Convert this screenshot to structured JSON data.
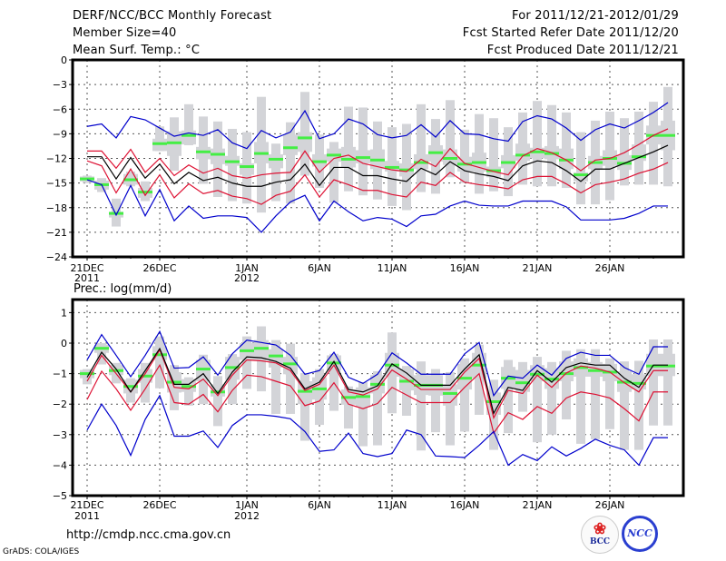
{
  "header": {
    "title": "DERF/NCC/BCC Monthly Forecast",
    "member_size": "Member Size=40",
    "variable_top": "Mean Surf. Temp.: °C",
    "period": "For 2011/12/21-2012/01/29",
    "started": "Fcst Started Refer Date 2011/12/20",
    "produced": "Fcst Produced Date 2011/12/21"
  },
  "footer": {
    "url": "http://cmdp.ncc.cma.gov.cn",
    "grads": "GrADS: COLA/IGES",
    "logo_bcc": "BCC",
    "logo_ncc": "NCC"
  },
  "colors": {
    "envelope": "#0000cc",
    "spread": "#dd1133",
    "mean": "#000000",
    "box": "#d3d4d8",
    "median": "#44ee44",
    "grid": "#555555"
  },
  "chart_data": [
    {
      "type": "line",
      "title": "Mean Surf. Temp.: °C",
      "ylabel": "°C",
      "ylim": [
        -24,
        0
      ],
      "yticks": [
        0,
        -3,
        -6,
        -9,
        -12,
        -15,
        -18,
        -21,
        -24
      ],
      "xtick_labels": [
        {
          "day": 0,
          "label": "21DEC",
          "sub": "2011"
        },
        {
          "day": 5,
          "label": "26DEC",
          "sub": ""
        },
        {
          "day": 11,
          "label": "1JAN",
          "sub": "2012"
        },
        {
          "day": 16,
          "label": "6JAN",
          "sub": ""
        },
        {
          "day": 21,
          "label": "11JAN",
          "sub": ""
        },
        {
          "day": 26,
          "label": "16JAN",
          "sub": ""
        },
        {
          "day": 31,
          "label": "21JAN",
          "sub": ""
        },
        {
          "day": 36,
          "label": "26JAN",
          "sub": ""
        }
      ],
      "grid": true,
      "x_days": 40,
      "series": [
        {
          "name": "max",
          "color_key": "envelope",
          "values": [
            -8.1,
            -7.8,
            -9.5,
            -6.9,
            -7.3,
            -8.3,
            -9.3,
            -8.9,
            -9.2,
            -8.5,
            -10.1,
            -10.8,
            -8.6,
            -9.5,
            -8.8,
            -6.2,
            -9.6,
            -9.0,
            -7.2,
            -7.8,
            -9.1,
            -9.5,
            -9.2,
            -7.9,
            -9.4,
            -7.4,
            -9.0,
            -9.1,
            -9.6,
            -9.9,
            -7.5,
            -6.8,
            -7.2,
            -8.3,
            -9.8,
            -8.5,
            -7.8,
            -8.3,
            -7.4,
            -6.4,
            -5.2
          ]
        },
        {
          "name": "upper",
          "color_key": "spread",
          "values": [
            -11.1,
            -11.1,
            -13.2,
            -10.9,
            -13.7,
            -12.0,
            -14.1,
            -12.8,
            -13.8,
            -13.2,
            -14.1,
            -14.4,
            -14.0,
            -13.8,
            -13.7,
            -11.1,
            -13.7,
            -12.0,
            -11.6,
            -12.6,
            -13.0,
            -13.4,
            -13.6,
            -12.1,
            -13.0,
            -10.8,
            -12.6,
            -13.1,
            -13.6,
            -14.0,
            -11.7,
            -10.8,
            -11.3,
            -12.2,
            -13.5,
            -12.2,
            -12.0,
            -11.3,
            -10.3,
            -9.2,
            -8.4
          ]
        },
        {
          "name": "mean",
          "color_key": "mean",
          "values": [
            -11.8,
            -11.8,
            -14.5,
            -11.9,
            -14.4,
            -12.7,
            -15.1,
            -13.7,
            -14.7,
            -14.3,
            -15.0,
            -15.4,
            -15.4,
            -14.9,
            -14.6,
            -12.7,
            -15.3,
            -13.1,
            -13.1,
            -14.1,
            -14.1,
            -14.5,
            -14.8,
            -13.2,
            -14.0,
            -12.4,
            -13.5,
            -13.9,
            -14.2,
            -14.7,
            -12.9,
            -12.3,
            -12.5,
            -13.5,
            -14.8,
            -13.3,
            -13.3,
            -12.6,
            -11.9,
            -11.2,
            -10.4
          ]
        },
        {
          "name": "lower",
          "color_key": "spread",
          "values": [
            -12.3,
            -12.9,
            -16.2,
            -13.3,
            -16.5,
            -14.0,
            -16.8,
            -15.1,
            -16.3,
            -15.9,
            -16.6,
            -16.9,
            -17.6,
            -16.5,
            -16.0,
            -14.0,
            -16.7,
            -14.6,
            -15.2,
            -15.9,
            -15.9,
            -16.4,
            -16.7,
            -14.9,
            -15.3,
            -13.7,
            -14.9,
            -15.2,
            -15.4,
            -15.7,
            -14.6,
            -14.2,
            -14.2,
            -15.1,
            -16.2,
            -15.2,
            -14.9,
            -14.5,
            -13.8,
            -13.3,
            -12.5
          ]
        },
        {
          "name": "min",
          "color_key": "envelope",
          "values": [
            -14.6,
            -15.2,
            -18.9,
            -15.3,
            -19.0,
            -15.8,
            -19.6,
            -17.8,
            -19.3,
            -19.0,
            -19.0,
            -19.2,
            -21.0,
            -19.0,
            -17.3,
            -16.5,
            -19.6,
            -17.2,
            -18.5,
            -19.6,
            -19.2,
            -19.4,
            -20.3,
            -19.0,
            -18.8,
            -17.8,
            -17.2,
            -17.7,
            -17.8,
            -17.8,
            -17.2,
            -17.2,
            -17.2,
            -17.9,
            -19.5,
            -19.5,
            -19.5,
            -19.3,
            -18.7,
            -17.8,
            -17.8
          ]
        }
      ],
      "boxes": {
        "median": [
          -14.5,
          -15.2,
          -18.7,
          -14.6,
          -16.1,
          -10.2,
          -10.1,
          -9.2,
          -11.2,
          -11.5,
          -12.4,
          -13.0,
          -11.4,
          -12.1,
          -10.7,
          -9.5,
          -12.4,
          -11.6,
          -12.1,
          -11.9,
          -12.2,
          -13.1,
          -13.4,
          -12.5,
          -11.3,
          -12.0,
          -12.7,
          -12.5,
          -13.5,
          -12.5,
          -11.6,
          -11.2,
          -11.4,
          -12.2,
          -14.0,
          -12.5,
          -12.0,
          -12.6,
          -11.8,
          -9.2,
          -9.2
        ],
        "q25": [
          -14.8,
          -15.8,
          -19.2,
          -15.2,
          -16.8,
          -11.1,
          -11.7,
          -10.3,
          -12.1,
          -12.7,
          -12.9,
          -14.0,
          -12.6,
          -13.2,
          -11.6,
          -11.2,
          -13.0,
          -12.4,
          -13.1,
          -12.6,
          -13.3,
          -13.6,
          -14.2,
          -13.3,
          -12.4,
          -12.8,
          -13.6,
          -13.6,
          -14.3,
          -13.2,
          -12.3,
          -12.0,
          -12.1,
          -13.3,
          -14.8,
          -13.3,
          -12.9,
          -13.4,
          -12.3,
          -10.3,
          -11.0
        ],
        "q75": [
          -14.2,
          -14.7,
          -18.5,
          -13.9,
          -15.6,
          -9.6,
          -8.7,
          -8.6,
          -10.6,
          -10.8,
          -11.7,
          -12.6,
          -10.0,
          -11.5,
          -9.1,
          -8.8,
          -11.5,
          -10.8,
          -10.6,
          -11.0,
          -10.9,
          -12.3,
          -12.6,
          -11.5,
          -10.4,
          -10.9,
          -11.8,
          -11.3,
          -13.0,
          -11.6,
          -10.2,
          -10.7,
          -10.5,
          -10.8,
          -13.7,
          -11.7,
          -11.0,
          -11.6,
          -10.3,
          -8.0,
          -7.4
        ],
        "min": [
          -15.0,
          -16.1,
          -20.3,
          -15.4,
          -17.2,
          -11.1,
          -13.5,
          -10.4,
          -15.1,
          -16.7,
          -17.2,
          -17.5,
          -18.6,
          -17.2,
          -17.5,
          -14.1,
          -15.6,
          -17.4,
          -16.0,
          -16.5,
          -17.0,
          -17.8,
          -18.3,
          -16.1,
          -16.3,
          -14.3,
          -15.0,
          -16.3,
          -16.0,
          -16.6,
          -15.2,
          -15.4,
          -15.4,
          -15.6,
          -17.6,
          -17.6,
          -17.1,
          -15.3,
          -15.2,
          -15.2,
          -15.4
        ],
        "max": [
          -14.1,
          -14.4,
          -16.9,
          -13.6,
          -14.8,
          -8.1,
          -7.0,
          -5.4,
          -6.9,
          -7.5,
          -8.4,
          -8.8,
          -4.5,
          -10.2,
          -7.6,
          -3.9,
          -9.1,
          -10.0,
          -5.7,
          -5.8,
          -7.5,
          -8.2,
          -7.8,
          -5.4,
          -7.2,
          -4.9,
          -8.5,
          -6.6,
          -7.1,
          -8.2,
          -6.4,
          -5.0,
          -5.5,
          -6.4,
          -8.8,
          -7.4,
          -6.3,
          -7.1,
          -6.3,
          -5.1,
          -3.3
        ]
      }
    },
    {
      "type": "line",
      "title": "Prec.: log(mm/d)",
      "ylabel": "log(mm/d)",
      "ylim": [
        -5,
        1.5
      ],
      "yticks": [
        1,
        0,
        -1,
        -2,
        -3,
        -4,
        -5
      ],
      "xtick_labels": [
        {
          "day": 0,
          "label": "21DEC",
          "sub": "2011"
        },
        {
          "day": 5,
          "label": "26DEC",
          "sub": ""
        },
        {
          "day": 11,
          "label": "1JAN",
          "sub": "2012"
        },
        {
          "day": 16,
          "label": "6JAN",
          "sub": ""
        },
        {
          "day": 21,
          "label": "11JAN",
          "sub": ""
        },
        {
          "day": 26,
          "label": "16JAN",
          "sub": ""
        },
        {
          "day": 31,
          "label": "21JAN",
          "sub": ""
        },
        {
          "day": 36,
          "label": "26JAN",
          "sub": ""
        }
      ],
      "grid": true,
      "x_days": 40,
      "series": [
        {
          "name": "max",
          "color_key": "envelope",
          "values": [
            -0.55,
            0.28,
            -0.4,
            -1.1,
            -0.4,
            0.38,
            -0.82,
            -0.8,
            -0.45,
            -1.05,
            -0.35,
            0.1,
            0.02,
            -0.06,
            -0.4,
            -1.02,
            -0.9,
            -0.3,
            -1.12,
            -1.32,
            -1.02,
            -0.32,
            -0.65,
            -1.02,
            -1.02,
            -1.02,
            -0.35,
            0.02,
            -1.72,
            -1.08,
            -1.15,
            -0.72,
            -1.05,
            -0.5,
            -0.3,
            -0.4,
            -0.4,
            -0.8,
            -1.02,
            -0.12,
            -0.12
          ]
        },
        {
          "name": "upper",
          "color_key": "spread",
          "values": [
            -1.25,
            -0.4,
            -1.0,
            -1.6,
            -1.0,
            -0.22,
            -1.45,
            -1.5,
            -1.18,
            -1.72,
            -1.05,
            -0.55,
            -0.58,
            -0.65,
            -0.9,
            -1.55,
            -1.35,
            -0.72,
            -1.6,
            -1.7,
            -1.5,
            -0.88,
            -1.18,
            -1.52,
            -1.52,
            -1.52,
            -0.95,
            -0.5,
            -2.45,
            -1.55,
            -1.65,
            -1.05,
            -1.45,
            -0.98,
            -0.75,
            -0.82,
            -0.95,
            -1.3,
            -1.6,
            -0.9,
            -0.9
          ]
        },
        {
          "name": "mean",
          "color_key": "mean",
          "values": [
            -1.12,
            -0.3,
            -0.85,
            -1.6,
            -0.9,
            -0.18,
            -1.35,
            -1.35,
            -1.0,
            -1.65,
            -0.95,
            -0.45,
            -0.48,
            -0.6,
            -0.82,
            -1.5,
            -1.28,
            -0.6,
            -1.52,
            -1.6,
            -1.4,
            -0.68,
            -0.98,
            -1.38,
            -1.38,
            -1.38,
            -0.85,
            -0.38,
            -2.3,
            -1.45,
            -1.55,
            -0.9,
            -1.28,
            -0.8,
            -0.65,
            -0.72,
            -0.72,
            -1.15,
            -1.45,
            -0.72,
            -0.72
          ]
        },
        {
          "name": "lower",
          "color_key": "spread",
          "values": [
            -1.85,
            -0.92,
            -1.5,
            -2.2,
            -1.5,
            -0.72,
            -1.95,
            -2.0,
            -1.68,
            -2.25,
            -1.55,
            -1.05,
            -1.1,
            -1.25,
            -1.4,
            -2.05,
            -1.9,
            -1.3,
            -2.0,
            -2.15,
            -1.98,
            -1.45,
            -1.7,
            -1.95,
            -1.95,
            -1.95,
            -1.45,
            -1.0,
            -2.95,
            -2.28,
            -2.5,
            -2.08,
            -2.3,
            -1.8,
            -1.6,
            -1.68,
            -1.8,
            -2.15,
            -2.55,
            -1.6,
            -1.6
          ]
        },
        {
          "name": "min",
          "color_key": "envelope",
          "values": [
            -2.85,
            -2.0,
            -2.7,
            -3.68,
            -2.5,
            -1.72,
            -3.05,
            -3.05,
            -2.88,
            -3.42,
            -2.7,
            -2.35,
            -2.35,
            -2.4,
            -2.48,
            -2.9,
            -3.55,
            -3.5,
            -2.95,
            -3.62,
            -3.72,
            -3.62,
            -2.85,
            -3.0,
            -3.7,
            -3.72,
            -3.75,
            -3.35,
            -2.9,
            -4.0,
            -3.65,
            -3.85,
            -3.4,
            -3.7,
            -3.45,
            -3.15,
            -3.35,
            -3.5,
            -4.0,
            -3.1,
            -3.1
          ]
        }
      ],
      "boxes": {
        "median": [
          -1.0,
          -0.17,
          -0.9,
          -1.42,
          -1.08,
          -0.38,
          -1.28,
          -1.42,
          -0.85,
          -1.6,
          -0.8,
          -0.25,
          -0.17,
          -0.42,
          -0.68,
          -1.58,
          -1.5,
          -0.65,
          -1.78,
          -1.75,
          -1.35,
          -0.72,
          -1.25,
          -1.38,
          -1.38,
          -1.65,
          -1.15,
          -0.72,
          -1.92,
          -1.15,
          -1.3,
          -1.02,
          -1.18,
          -1.0,
          -0.8,
          -0.9,
          -0.95,
          -1.28,
          -1.32,
          -0.75,
          -0.75
        ],
        "q25": [
          -1.15,
          -0.32,
          -1.05,
          -1.65,
          -1.3,
          -0.55,
          -1.62,
          -1.6,
          -1.25,
          -1.75,
          -1.2,
          -0.55,
          -0.55,
          -0.8,
          -1.02,
          -2.0,
          -1.85,
          -0.9,
          -2.02,
          -2.1,
          -1.65,
          -1.1,
          -1.55,
          -1.7,
          -1.72,
          -2.05,
          -1.52,
          -1.15,
          -2.35,
          -1.5,
          -1.6,
          -1.25,
          -1.5,
          -1.25,
          -1.1,
          -1.1,
          -1.25,
          -1.6,
          -1.52,
          -1.08,
          -1.08
        ],
        "q75": [
          -0.88,
          -0.05,
          -0.72,
          -1.2,
          -0.85,
          -0.1,
          -0.95,
          -1.18,
          -0.55,
          -1.35,
          -0.45,
          0.0,
          0.1,
          -0.2,
          -0.45,
          -1.25,
          -1.12,
          -0.4,
          -1.52,
          -1.45,
          -1.05,
          -0.32,
          -0.85,
          -1.05,
          -1.05,
          -1.35,
          -0.68,
          -0.32,
          -1.62,
          -0.78,
          -0.88,
          -0.72,
          -0.82,
          -0.6,
          -0.5,
          -0.62,
          -0.68,
          -0.92,
          -1.02,
          -0.35,
          -0.35
        ],
        "min": [
          -1.35,
          -0.7,
          -1.32,
          -1.95,
          -1.95,
          -1.48,
          -2.2,
          -2.05,
          -2.0,
          -2.72,
          -2.0,
          -1.5,
          -1.58,
          -2.32,
          -2.32,
          -3.2,
          -2.68,
          -2.22,
          -2.8,
          -3.38,
          -3.35,
          -2.3,
          -2.38,
          -3.52,
          -2.92,
          -3.35,
          -2.9,
          -2.35,
          -3.5,
          -2.95,
          -2.25,
          -3.25,
          -3.0,
          -2.5,
          -3.3,
          -3.15,
          -2.82,
          -3.5,
          -3.5,
          -2.7,
          -2.7
        ],
        "max": [
          -0.85,
          0.0,
          -0.65,
          -1.15,
          -0.65,
          0.22,
          -0.72,
          -1.12,
          -0.38,
          -1.08,
          -0.36,
          0.22,
          0.55,
          0.1,
          -0.02,
          -0.98,
          -0.85,
          -0.35,
          -1.42,
          -1.28,
          -0.92,
          0.35,
          -0.75,
          -0.6,
          -0.85,
          -0.95,
          -0.5,
          -0.05,
          -1.2,
          -0.55,
          -0.62,
          -0.45,
          -0.62,
          -0.25,
          -0.2,
          -0.2,
          -0.5,
          -0.6,
          -0.58,
          0.12,
          0.12
        ]
      }
    }
  ]
}
